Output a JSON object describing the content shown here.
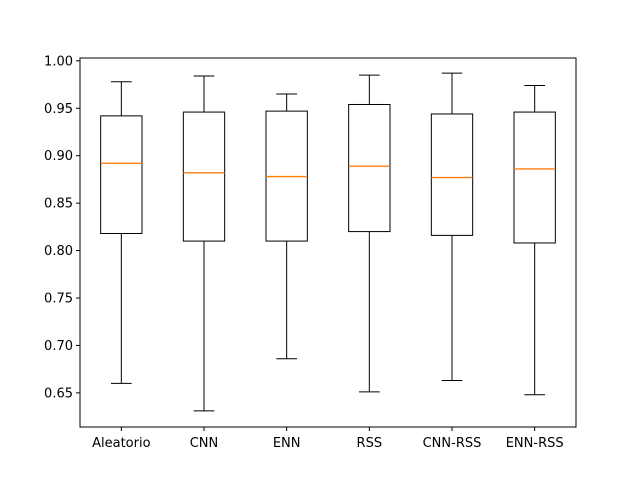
{
  "chart_data": {
    "type": "boxplot",
    "title": "",
    "xlabel": "",
    "ylabel": "",
    "categories": [
      "Aleatorio",
      "CNN",
      "ENN",
      "RSS",
      "CNN-RSS",
      "ENN-RSS"
    ],
    "boxes": [
      {
        "whislo": 0.66,
        "q1": 0.818,
        "med": 0.892,
        "q3": 0.942,
        "whishi": 0.978
      },
      {
        "whislo": 0.631,
        "q1": 0.81,
        "med": 0.882,
        "q3": 0.946,
        "whishi": 0.984
      },
      {
        "whislo": 0.686,
        "q1": 0.81,
        "med": 0.878,
        "q3": 0.947,
        "whishi": 0.965
      },
      {
        "whislo": 0.651,
        "q1": 0.82,
        "med": 0.889,
        "q3": 0.954,
        "whishi": 0.985
      },
      {
        "whislo": 0.663,
        "q1": 0.816,
        "med": 0.877,
        "q3": 0.944,
        "whishi": 0.987
      },
      {
        "whislo": 0.648,
        "q1": 0.808,
        "med": 0.886,
        "q3": 0.946,
        "whishi": 0.974
      }
    ],
    "yticks": [
      0.65,
      0.7,
      0.75,
      0.8,
      0.85,
      0.9,
      0.95,
      1.0
    ],
    "ytick_labels": [
      "0.65",
      "0.70",
      "0.75",
      "0.80",
      "0.85",
      "0.90",
      "0.95",
      "1.00"
    ],
    "ylim": [
      0.614,
      1.003
    ],
    "grid": false,
    "colors": {
      "box": "#000000",
      "median": "#ff7f0e",
      "axes": "#000000"
    }
  }
}
